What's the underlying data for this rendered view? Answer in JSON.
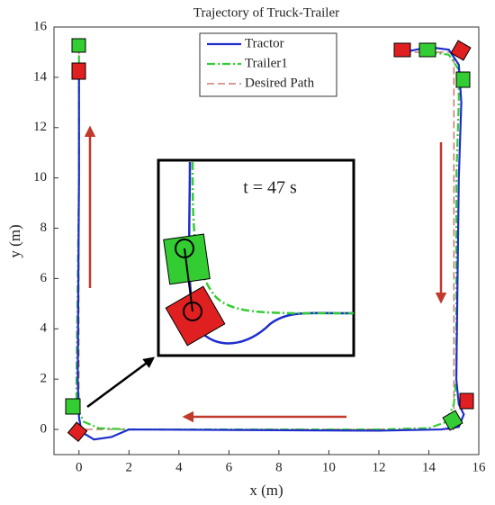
{
  "chart_data": {
    "type": "line",
    "title": "Trajectory of Truck-Trailer",
    "xlabel": "x (m)",
    "ylabel": "y (m)",
    "xlim": [
      -1,
      16
    ],
    "ylim": [
      -1,
      16
    ],
    "xticks": [
      0,
      2,
      4,
      6,
      8,
      10,
      12,
      14,
      16
    ],
    "yticks": [
      0,
      2,
      4,
      6,
      8,
      10,
      12,
      14,
      16
    ],
    "legend": "upper center",
    "annotation": "t = 47 s",
    "series": [
      {
        "name": "Tractor",
        "color": "#1f2ecc",
        "style": "solid",
        "x": [
          13,
          14,
          14.8,
          15.2,
          15.3,
          15.2,
          15.1,
          15.2,
          15.4,
          15.2,
          14.5,
          12,
          2,
          1.3,
          0.6,
          0.1,
          0,
          -0.05,
          0,
          0
        ],
        "values": [
          15,
          15.2,
          15.1,
          14.5,
          13,
          10,
          2,
          1,
          0.6,
          0.1,
          0,
          -0.05,
          0,
          -0.3,
          -0.4,
          -0.1,
          0.5,
          2,
          10,
          14.2
        ]
      },
      {
        "name": "Trailer1",
        "color": "#33cc33",
        "style": "dashdot",
        "x": [
          14,
          14.8,
          15.2,
          15.2,
          15.1,
          15.1,
          15,
          14.7,
          14,
          12,
          2,
          0.8,
          0.2,
          -0.1,
          -0.1,
          0,
          0
        ],
        "values": [
          15,
          14.9,
          14.3,
          13,
          10,
          2,
          1,
          0.3,
          0.05,
          0,
          0,
          0.05,
          0.3,
          0.9,
          2,
          10,
          15.2
        ]
      },
      {
        "name": "Desired Path",
        "color": "#b03a2e",
        "style": "dashed",
        "x": [
          13,
          15,
          15,
          0,
          0
        ],
        "values": [
          15,
          15,
          0,
          0,
          15
        ]
      }
    ]
  }
}
